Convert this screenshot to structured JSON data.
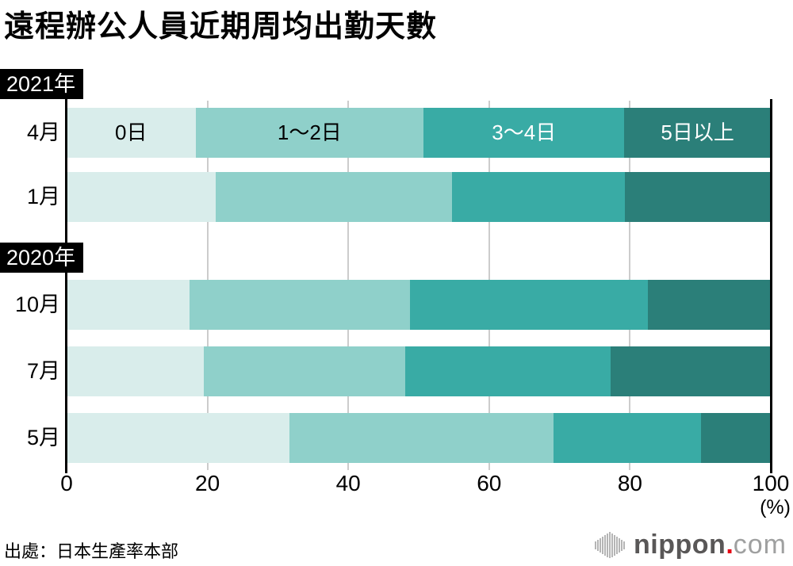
{
  "title": "遠程辦公人員近期周均出勤天數",
  "source": "出處：日本生產率本部",
  "logo": {
    "name": "nippon",
    "dot": ".",
    "tld": "com",
    "dot_color": "#e60012",
    "icon": "soundwave-bars-icon"
  },
  "chart_data": {
    "type": "bar",
    "stacked": true,
    "orientation": "horizontal",
    "title": "遠程辦公人員近期周均出勤天數",
    "xlabel": "(%)",
    "xlim": [
      0,
      100
    ],
    "x_ticks": [
      0,
      20,
      40,
      60,
      80,
      100
    ],
    "grid": true,
    "legend_position": "labels-inside-first-bar",
    "series_labels": [
      "0日",
      "1〜2日",
      "3〜4日",
      "5日以上"
    ],
    "series_colors": [
      "#d9edeb",
      "#8fd0ca",
      "#39aba5",
      "#2b7f79"
    ],
    "series_label_text_colors": [
      "#000000",
      "#000000",
      "#ffffff",
      "#ffffff"
    ],
    "groups": [
      {
        "label": "2021年",
        "rows": [
          {
            "month": "4月",
            "values": [
              18.3,
              32.4,
              28.5,
              20.8
            ]
          },
          {
            "month": "1月",
            "values": [
              21.2,
              33.5,
              24.6,
              20.7
            ]
          }
        ]
      },
      {
        "label": "2020年",
        "rows": [
          {
            "month": "10月",
            "values": [
              17.5,
              31.3,
              33.8,
              17.4
            ]
          },
          {
            "month": "7月",
            "values": [
              19.5,
              28.6,
              29.2,
              22.7
            ]
          },
          {
            "month": "5月",
            "values": [
              31.7,
              37.4,
              21.0,
              9.9
            ]
          }
        ]
      }
    ]
  }
}
